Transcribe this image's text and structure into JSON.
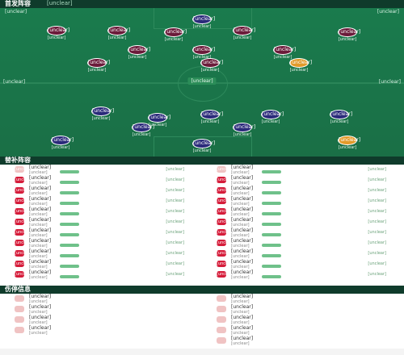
{
  "lineup": {
    "title": "首发阵容",
    "hint": "[unclear]",
    "home_team_label": "[unclear]",
    "away_team_label": "[unclear]",
    "coach_home": "[unclear]",
    "coach_away": "[unclear]",
    "home_formation": "[unclear]",
    "away_formation": "[unclear]",
    "center_label": "[unclear]"
  },
  "players": [
    {
      "num": "[unclear]",
      "name": "[unclear]",
      "side": "away"
    },
    {
      "num": "[unclear]",
      "name": "[unclear]",
      "side": "away"
    },
    {
      "num": "[unclear]",
      "name": "[unclear]",
      "side": "away"
    },
    {
      "num": "[unclear]",
      "name": "[unclear]",
      "side": "away"
    },
    {
      "num": "[unclear]",
      "name": "[unclear]",
      "side": "away"
    },
    {
      "num": "[unclear]",
      "name": "[unclear]",
      "side": "away"
    },
    {
      "num": "[unclear]",
      "name": "[unclear]",
      "side": "away"
    },
    {
      "num": "[unclear]",
      "name": "[unclear]",
      "side": "away"
    },
    {
      "num": "[unclear]",
      "name": "[unclear]",
      "side": "away"
    },
    {
      "num": "[unclear]",
      "name": "[unclear]",
      "side": "away"
    },
    {
      "num": "[unclear]",
      "name": "[unclear]",
      "side": "away-gk"
    },
    {
      "num": "[unclear]",
      "name": "[unclear]",
      "side": "home"
    },
    {
      "num": "[unclear]",
      "name": "[unclear]",
      "side": "home"
    },
    {
      "num": "[unclear]",
      "name": "[unclear]",
      "side": "home"
    },
    {
      "num": "[unclear]",
      "name": "[unclear]",
      "side": "home"
    },
    {
      "num": "[unclear]",
      "name": "[unclear]",
      "side": "home"
    },
    {
      "num": "[unclear]",
      "name": "[unclear]",
      "side": "home"
    },
    {
      "num": "[unclear]",
      "name": "[unclear]",
      "side": "home"
    },
    {
      "num": "[unclear]",
      "name": "[unclear]",
      "side": "home"
    },
    {
      "num": "[unclear]",
      "name": "[unclear]",
      "side": "home"
    },
    {
      "num": "[unclear]",
      "name": "[unclear]",
      "side": "home"
    },
    {
      "num": "[unclear]",
      "name": "[unclear]",
      "side": "home-gk"
    }
  ],
  "subs": {
    "title": "替补阵容",
    "left": [
      {
        "num": "[unclear]",
        "name": "[unclear]",
        "pos": "[unclear]",
        "ev": "[unclear]",
        "mgr": true
      },
      {
        "num": "[unclear]",
        "name": "[unclear]",
        "pos": "[unclear]",
        "ev": "[unclear]"
      },
      {
        "num": "[unclear]",
        "name": "[unclear]",
        "pos": "[unclear]",
        "ev": "[unclear]"
      },
      {
        "num": "[unclear]",
        "name": "[unclear]",
        "pos": "[unclear]",
        "ev": "[unclear]"
      },
      {
        "num": "[unclear]",
        "name": "[unclear]",
        "pos": "[unclear]",
        "ev": "[unclear]"
      },
      {
        "num": "[unclear]",
        "name": "[unclear]",
        "pos": "[unclear]",
        "ev": "[unclear]"
      },
      {
        "num": "[unclear]",
        "name": "[unclear]",
        "pos": "[unclear]",
        "ev": "[unclear]"
      },
      {
        "num": "[unclear]",
        "name": "[unclear]",
        "pos": "[unclear]",
        "ev": "[unclear]"
      },
      {
        "num": "[unclear]",
        "name": "[unclear]",
        "pos": "[unclear]",
        "ev": "[unclear]"
      },
      {
        "num": "[unclear]",
        "name": "[unclear]",
        "pos": "[unclear]",
        "ev": "[unclear]"
      },
      {
        "num": "[unclear]",
        "name": "[unclear]",
        "pos": "[unclear]",
        "ev": "[unclear]"
      }
    ],
    "right": [
      {
        "num": "[unclear]",
        "name": "[unclear]",
        "pos": "[unclear]",
        "ev": "[unclear]",
        "mgr": true
      },
      {
        "num": "[unclear]",
        "name": "[unclear]",
        "pos": "[unclear]",
        "ev": "[unclear]"
      },
      {
        "num": "[unclear]",
        "name": "[unclear]",
        "pos": "[unclear]",
        "ev": "[unclear]"
      },
      {
        "num": "[unclear]",
        "name": "[unclear]",
        "pos": "[unclear]",
        "ev": "[unclear]"
      },
      {
        "num": "[unclear]",
        "name": "[unclear]",
        "pos": "[unclear]",
        "ev": "[unclear]"
      },
      {
        "num": "[unclear]",
        "name": "[unclear]",
        "pos": "[unclear]",
        "ev": "[unclear]"
      },
      {
        "num": "[unclear]",
        "name": "[unclear]",
        "pos": "[unclear]",
        "ev": "[unclear]"
      },
      {
        "num": "[unclear]",
        "name": "[unclear]",
        "pos": "[unclear]",
        "ev": "[unclear]"
      },
      {
        "num": "[unclear]",
        "name": "[unclear]",
        "pos": "[unclear]",
        "ev": "[unclear]"
      },
      {
        "num": "[unclear]",
        "name": "[unclear]",
        "pos": "[unclear]",
        "ev": "[unclear]"
      },
      {
        "num": "[unclear]",
        "name": "[unclear]",
        "pos": "[unclear]",
        "ev": "[unclear]"
      }
    ]
  },
  "injuries": {
    "title": "伤停信息",
    "left": [
      {
        "num": "",
        "name": "[unclear]",
        "pos": "[unclear]",
        "mgr": true
      },
      {
        "num": "",
        "name": "[unclear]",
        "pos": "[unclear]"
      },
      {
        "num": "",
        "name": "[unclear]",
        "pos": "[unclear]"
      },
      {
        "num": "",
        "name": "[unclear]",
        "pos": "[unclear]"
      }
    ],
    "right": [
      {
        "num": "",
        "name": "[unclear]",
        "pos": "[unclear]",
        "mgr": true
      },
      {
        "num": "",
        "name": "[unclear]",
        "pos": "[unclear]"
      },
      {
        "num": "",
        "name": "[unclear]",
        "pos": "[unclear]"
      },
      {
        "num": "",
        "name": "[unclear]",
        "pos": "[unclear]"
      },
      {
        "num": "",
        "name": "[unclear]",
        "pos": "[unclear]"
      }
    ]
  }
}
